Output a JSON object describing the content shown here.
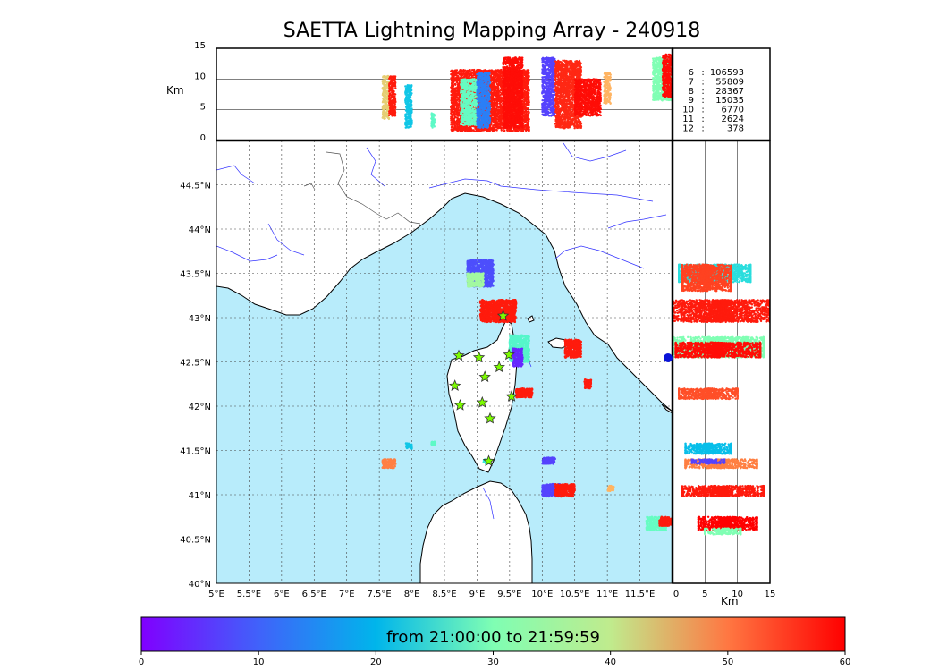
{
  "title": "SAETTA Lightning Mapping Array - 240918",
  "colorbar": {
    "label": "from 21:00:00 to 21:59:59",
    "ticks": [
      "0",
      "10",
      "20",
      "30",
      "40",
      "50",
      "60"
    ],
    "range": [
      0,
      60
    ],
    "colormap": "rainbow"
  },
  "colors": {
    "sea": "#b8ecfb",
    "land": "#ffffff",
    "station": "#7cfc00",
    "river": "#3333ff"
  },
  "chart_data": [
    {
      "type": "scatter",
      "panel": "altitude-longitude",
      "ylabel": "Km",
      "xlim": [
        5,
        12
      ],
      "ylim": [
        0,
        15
      ],
      "yticks": [
        "0",
        "5",
        "10",
        "15"
      ],
      "clusters": [
        {
          "x": [
            7.55,
            7.65
          ],
          "z": [
            3.5,
            10.5
          ],
          "t": 42
        },
        {
          "x": [
            7.65,
            7.75
          ],
          "z": [
            4.0,
            10.5
          ],
          "t": 58
        },
        {
          "x": [
            7.9,
            8.0
          ],
          "z": [
            2.0,
            9.0
          ],
          "t": 17
        },
        {
          "x": [
            8.3,
            8.35
          ],
          "z": [
            2.0,
            4.5
          ],
          "t": 26
        },
        {
          "x": [
            8.6,
            9.8
          ],
          "z": [
            1.5,
            11.5
          ],
          "t": 58
        },
        {
          "x": [
            8.75,
            9.0
          ],
          "z": [
            2.5,
            10.0
          ],
          "t": 27
        },
        {
          "x": [
            9.0,
            9.2
          ],
          "z": [
            2.0,
            11.0
          ],
          "t": 10
        },
        {
          "x": [
            9.4,
            9.7
          ],
          "z": [
            2.0,
            13.5
          ],
          "t": 59
        },
        {
          "x": [
            10.0,
            10.2
          ],
          "z": [
            4.0,
            13.5
          ],
          "t": 5
        },
        {
          "x": [
            10.2,
            10.6
          ],
          "z": [
            2.0,
            13.0
          ],
          "t": 57
        },
        {
          "x": [
            10.5,
            10.9
          ],
          "z": [
            4.0,
            10.0
          ],
          "t": 59
        },
        {
          "x": [
            10.95,
            11.05
          ],
          "z": [
            6.0,
            11.0
          ],
          "t": 45
        },
        {
          "x": [
            11.7,
            12.0
          ],
          "z": [
            6.5,
            13.5
          ],
          "t": 30
        },
        {
          "x": [
            11.85,
            12.0
          ],
          "z": [
            7.0,
            14.0
          ],
          "t": 59
        }
      ]
    },
    {
      "type": "scatter",
      "panel": "plan-view",
      "xlim": [
        5,
        12
      ],
      "ylim": [
        40,
        45
      ],
      "xticks": [
        "5°E",
        "5.5°E",
        "6°E",
        "6.5°E",
        "7°E",
        "7.5°E",
        "8°E",
        "8.5°E",
        "9°E",
        "9.5°E",
        "10°E",
        "10.5°E",
        "11°E",
        "11.5°E"
      ],
      "yticks": [
        "40°N",
        "40.5°N",
        "41°N",
        "41.5°N",
        "42°N",
        "42.5°N",
        "43°N",
        "43.5°N",
        "44°N",
        "44.5°N"
      ],
      "clusters": [
        {
          "lon": [
            8.85,
            9.25
          ],
          "lat": [
            43.35,
            43.65
          ],
          "t": 6
        },
        {
          "lon": [
            8.85,
            9.1
          ],
          "lat": [
            43.35,
            43.5
          ],
          "t": 34
        },
        {
          "lon": [
            9.05,
            9.6
          ],
          "lat": [
            42.95,
            43.2
          ],
          "t": 58
        },
        {
          "lon": [
            9.5,
            9.8
          ],
          "lat": [
            42.5,
            42.8
          ],
          "t": 25
        },
        {
          "lon": [
            9.55,
            9.7
          ],
          "lat": [
            42.45,
            42.65
          ],
          "t": 3
        },
        {
          "lon": [
            10.35,
            10.6
          ],
          "lat": [
            42.55,
            42.75
          ],
          "t": 58
        },
        {
          "lon": [
            10.65,
            10.75
          ],
          "lat": [
            42.2,
            42.3
          ],
          "t": 58
        },
        {
          "lon": [
            9.6,
            9.85
          ],
          "lat": [
            42.1,
            42.2
          ],
          "t": 58
        },
        {
          "lon": [
            7.9,
            8.0
          ],
          "lat": [
            41.52,
            41.58
          ],
          "t": 17
        },
        {
          "lon": [
            8.3,
            8.35
          ],
          "lat": [
            41.56,
            41.6
          ],
          "t": 26
        },
        {
          "lon": [
            7.55,
            7.75
          ],
          "lat": [
            41.3,
            41.4
          ],
          "t": 50
        },
        {
          "lon": [
            10.0,
            10.2
          ],
          "lat": [
            41.35,
            41.42
          ],
          "t": 5
        },
        {
          "lon": [
            10.0,
            10.3
          ],
          "lat": [
            40.98,
            41.12
          ],
          "t": 5
        },
        {
          "lon": [
            10.2,
            10.5
          ],
          "lat": [
            40.98,
            41.12
          ],
          "t": 58
        },
        {
          "lon": [
            11.0,
            11.1
          ],
          "lat": [
            41.04,
            41.1
          ],
          "t": 45
        },
        {
          "lon": [
            9.1,
            9.2
          ],
          "lat": [
            41.35,
            41.4
          ],
          "t": 22
        },
        {
          "lon": [
            11.6,
            11.9
          ],
          "lat": [
            40.6,
            40.75
          ],
          "t": 27
        },
        {
          "lon": [
            11.8,
            12.0
          ],
          "lat": [
            40.65,
            40.75
          ],
          "t": 58
        }
      ],
      "stations": [
        {
          "lon": 8.72,
          "lat": 42.57
        },
        {
          "lon": 9.03,
          "lat": 42.55
        },
        {
          "lon": 9.49,
          "lat": 42.58
        },
        {
          "lon": 9.34,
          "lat": 42.44
        },
        {
          "lon": 9.12,
          "lat": 42.33
        },
        {
          "lon": 8.66,
          "lat": 42.23
        },
        {
          "lon": 9.53,
          "lat": 42.11
        },
        {
          "lon": 9.08,
          "lat": 42.04
        },
        {
          "lon": 8.74,
          "lat": 42.01
        },
        {
          "lon": 9.2,
          "lat": 41.86
        },
        {
          "lon": 9.18,
          "lat": 41.38
        },
        {
          "lon": 9.4,
          "lat": 43.02
        }
      ]
    },
    {
      "type": "scatter",
      "panel": "latitude-altitude",
      "xlabel": "Km",
      "xlim": [
        0,
        15
      ],
      "ylim": [
        40,
        45
      ],
      "xticks": [
        "0",
        "5",
        "10",
        "15"
      ],
      "clusters": [
        {
          "z": [
            1.0,
            12.0
          ],
          "lat": [
            43.4,
            43.6
          ],
          "t": 20
        },
        {
          "z": [
            1.5,
            9.0
          ],
          "lat": [
            43.3,
            43.6
          ],
          "t": 55
        },
        {
          "z": [
            0.0,
            15.0
          ],
          "lat": [
            42.95,
            43.2
          ],
          "t": 58
        },
        {
          "z": [
            0.0,
            14.0
          ],
          "lat": [
            42.55,
            42.78
          ],
          "t": 30
        },
        {
          "z": [
            0.5,
            13.5
          ],
          "lat": [
            42.55,
            42.72
          ],
          "t": 59
        },
        {
          "z": [
            1.0,
            10.0
          ],
          "lat": [
            42.08,
            42.2
          ],
          "t": 54
        },
        {
          "z": [
            2.0,
            9.0
          ],
          "lat": [
            41.46,
            41.58
          ],
          "t": 16
        },
        {
          "z": [
            2.0,
            13.0
          ],
          "lat": [
            41.3,
            41.4
          ],
          "t": 50
        },
        {
          "z": [
            3.0,
            8.0
          ],
          "lat": [
            41.35,
            41.4
          ],
          "t": 5
        },
        {
          "z": [
            1.5,
            14.0
          ],
          "lat": [
            40.98,
            41.1
          ],
          "t": 58
        },
        {
          "z": [
            4.0,
            13.0
          ],
          "lat": [
            40.6,
            40.75
          ],
          "t": 60
        },
        {
          "z": [
            5.0,
            10.5
          ],
          "lat": [
            40.55,
            40.62
          ],
          "t": 30
        }
      ]
    },
    {
      "type": "table",
      "panel": "altitude-histogram-counts",
      "rows": [
        {
          "km": "6",
          "sep": ":",
          "count": "106593",
          "color": "#000000"
        },
        {
          "km": "7",
          "sep": ":",
          "count": "55809",
          "color": "#ff0000"
        },
        {
          "km": "8",
          "sep": ":",
          "count": "28367",
          "color": "#000000"
        },
        {
          "km": "9",
          "sep": ":",
          "count": "15035",
          "color": "#000000"
        },
        {
          "km": "10",
          "sep": ":",
          "count": "6770",
          "color": "#000000"
        },
        {
          "km": "11",
          "sep": ":",
          "count": "2624",
          "color": "#000000"
        },
        {
          "km": "12",
          "sep": ":",
          "count": "378",
          "color": "#000000"
        }
      ]
    }
  ]
}
